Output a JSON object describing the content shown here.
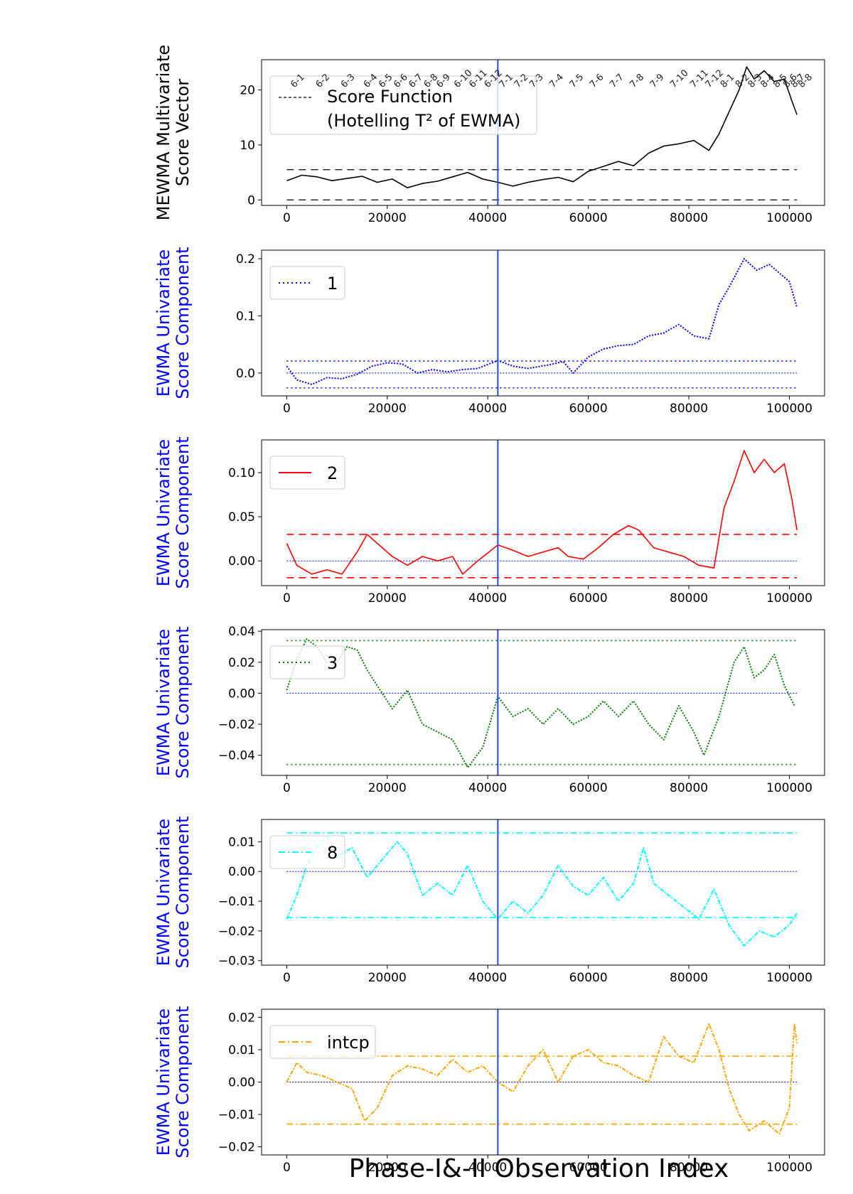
{
  "figure": {
    "xlabel": "Phase-I&-II Observation Index",
    "vline_x": 42000
  },
  "chart_data": [
    {
      "type": "line",
      "ylabel": [
        "MEWMA Multivariate",
        "Score Vector"
      ],
      "ylabel_color": "#000000",
      "ylim": [
        -1,
        25.5
      ],
      "xlim": [
        -5000,
        107000
      ],
      "xticks": [
        0,
        20000,
        40000,
        60000,
        80000,
        100000
      ],
      "yticks": [
        0,
        10,
        20
      ],
      "ytick_labels": [
        "0",
        "10",
        "20"
      ],
      "legend_position": "top-left",
      "series": [
        {
          "name": [
            "Score Function",
            "(Hotelling T² of EWMA)"
          ],
          "color": "#000000",
          "style": "solid",
          "x": [
            0,
            3000,
            6000,
            9000,
            12000,
            15000,
            18000,
            21000,
            24000,
            27000,
            30000,
            33000,
            36000,
            39000,
            42000,
            45000,
            48000,
            51000,
            54000,
            57000,
            60000,
            63000,
            66000,
            69000,
            72000,
            75000,
            78000,
            81000,
            84000,
            86000,
            88000,
            90000,
            91500,
            93000,
            95000,
            97000,
            99000,
            100500,
            101500
          ],
          "y": [
            3.5,
            4.5,
            4.2,
            3.5,
            3.9,
            4.3,
            3.2,
            3.8,
            2.2,
            3.0,
            3.4,
            4.2,
            5.0,
            3.8,
            3.2,
            2.5,
            3.2,
            3.7,
            4.1,
            3.3,
            5.2,
            6.1,
            7.0,
            6.2,
            8.5,
            9.8,
            10.2,
            10.8,
            9.0,
            12.0,
            16.0,
            20.0,
            24.2,
            22.0,
            23.5,
            21.5,
            22.0,
            18.0,
            15.5
          ]
        }
      ],
      "control_limits": [
        {
          "y": 0,
          "color": "#000000",
          "style": "dashed"
        },
        {
          "y": 5.5,
          "color": "#000000",
          "style": "dashed"
        }
      ],
      "annotations": [
        "6-1",
        "6-2",
        "6-3",
        "6-4",
        "6-5",
        "6-6",
        "6-7",
        "6-8",
        "6-9",
        "6-10",
        "6-11",
        "6-12",
        "7-1",
        "7-2",
        "7-3",
        "7-4",
        "7-5",
        "7-6",
        "7-7",
        "7-8",
        "7-9",
        "7-10",
        "7-11",
        "7-12",
        "8-1",
        "8-2",
        "8-3",
        "8-4",
        "8-5",
        "8-6",
        "8-7",
        "8-8"
      ],
      "annotation_x": [
        1500,
        6500,
        11500,
        16000,
        19000,
        22000,
        25000,
        28000,
        30500,
        34000,
        37000,
        40000,
        43000,
        46000,
        49000,
        53000,
        57000,
        61000,
        65000,
        69000,
        73000,
        77000,
        81000,
        84000,
        87000,
        90000,
        92500,
        95000,
        97500,
        99500,
        101000,
        102500
      ]
    },
    {
      "type": "line",
      "ylabel": [
        "EWMA Univariate",
        "Score Component"
      ],
      "ylabel_color": "#0000ff",
      "ylim": [
        -0.04,
        0.215
      ],
      "xlim": [
        -5000,
        107000
      ],
      "xticks": [
        0,
        20000,
        40000,
        60000,
        80000,
        100000
      ],
      "yticks": [
        0.0,
        0.1,
        0.2
      ],
      "ytick_labels": [
        "0.0",
        "0.1",
        "0.2"
      ],
      "legend_position": "top-left",
      "series": [
        {
          "name": "1",
          "color": "#0000ff",
          "style": "dotted",
          "x": [
            0,
            2000,
            5000,
            8000,
            11000,
            14000,
            17000,
            20000,
            23000,
            26000,
            29000,
            32000,
            35000,
            38000,
            42000,
            45000,
            48000,
            52000,
            55000,
            57000,
            60000,
            63000,
            66000,
            69000,
            72000,
            75000,
            78000,
            81000,
            84000,
            86000,
            88000,
            91000,
            93500,
            96000,
            98000,
            100000,
            101500
          ],
          "y": [
            0.012,
            -0.012,
            -0.02,
            -0.008,
            -0.01,
            -0.002,
            0.012,
            0.018,
            0.016,
            0.0,
            0.006,
            0.002,
            0.006,
            0.008,
            0.022,
            0.012,
            0.008,
            0.014,
            0.02,
            0.0,
            0.028,
            0.042,
            0.048,
            0.05,
            0.065,
            0.07,
            0.085,
            0.065,
            0.06,
            0.12,
            0.15,
            0.2,
            0.18,
            0.19,
            0.175,
            0.16,
            0.115
          ]
        }
      ],
      "control_limits": [
        {
          "y": 0,
          "color": "#0000ff",
          "style": "dotted_thin"
        },
        {
          "y": 0.021,
          "color": "#0000ff",
          "style": "dotted"
        },
        {
          "y": -0.026,
          "color": "#0000ff",
          "style": "dotted"
        }
      ]
    },
    {
      "type": "line",
      "ylabel": [
        "EWMA Univariate",
        "Score Component"
      ],
      "ylabel_color": "#0000ff",
      "ylim": [
        -0.028,
        0.137
      ],
      "xlim": [
        -5000,
        107000
      ],
      "xticks": [
        0,
        20000,
        40000,
        60000,
        80000,
        100000
      ],
      "yticks": [
        0.0,
        0.05,
        0.1
      ],
      "ytick_labels": [
        "0.00",
        "0.05",
        "0.10"
      ],
      "legend_position": "top-left",
      "series": [
        {
          "name": "2",
          "color": "#ff0000",
          "style": "solid",
          "x": [
            0,
            2000,
            5000,
            8000,
            11000,
            14000,
            16000,
            18000,
            21000,
            24000,
            27000,
            30000,
            33000,
            35000,
            38000,
            42000,
            45000,
            48000,
            51000,
            54000,
            56000,
            59000,
            62000,
            65000,
            68000,
            70000,
            73000,
            76000,
            79000,
            82000,
            85000,
            87000,
            89000,
            91000,
            93000,
            95000,
            97000,
            99000,
            100500,
            101500
          ],
          "y": [
            0.02,
            -0.005,
            -0.015,
            -0.01,
            -0.015,
            0.01,
            0.03,
            0.02,
            0.005,
            -0.005,
            0.005,
            0.0,
            0.005,
            -0.015,
            0.0,
            0.018,
            0.012,
            0.005,
            0.01,
            0.015,
            0.005,
            0.002,
            0.015,
            0.03,
            0.04,
            0.035,
            0.015,
            0.01,
            0.005,
            -0.005,
            -0.008,
            0.06,
            0.09,
            0.125,
            0.1,
            0.115,
            0.1,
            0.11,
            0.07,
            0.035
          ]
        }
      ],
      "control_limits": [
        {
          "y": 0,
          "color": "#0000ff",
          "style": "dotted_thin"
        },
        {
          "y": 0.03,
          "color": "#ff0000",
          "style": "dashed"
        },
        {
          "y": -0.019,
          "color": "#ff0000",
          "style": "dashed"
        }
      ]
    },
    {
      "type": "line",
      "ylabel": [
        "EWMA Univariate",
        "Score Component"
      ],
      "ylabel_color": "#0000ff",
      "ylim": [
        -0.053,
        0.041
      ],
      "xlim": [
        -5000,
        107000
      ],
      "xticks": [
        0,
        20000,
        40000,
        60000,
        80000,
        100000
      ],
      "yticks": [
        -0.04,
        -0.02,
        0.0,
        0.02,
        0.04
      ],
      "ytick_labels": [
        "−0.04",
        "−0.02",
        "0.00",
        "0.02",
        "0.04"
      ],
      "legend_position": "top-left",
      "series": [
        {
          "name": "3",
          "color": "#008000",
          "style": "dotted",
          "x": [
            0,
            2000,
            4000,
            6000,
            8000,
            10000,
            12000,
            14000,
            16000,
            18000,
            21000,
            24000,
            27000,
            30000,
            33000,
            36000,
            39000,
            42000,
            45000,
            48000,
            51000,
            54000,
            57000,
            60000,
            63000,
            66000,
            69000,
            72000,
            75000,
            78000,
            81000,
            83000,
            86000,
            89000,
            91000,
            93000,
            95000,
            97000,
            99000,
            101000
          ],
          "y": [
            0.002,
            0.022,
            0.035,
            0.03,
            0.02,
            0.02,
            0.03,
            0.028,
            0.015,
            0.005,
            -0.01,
            0.002,
            -0.02,
            -0.025,
            -0.03,
            -0.048,
            -0.035,
            -0.002,
            -0.015,
            -0.01,
            -0.02,
            -0.01,
            -0.02,
            -0.015,
            -0.005,
            -0.015,
            -0.005,
            -0.02,
            -0.03,
            -0.008,
            -0.025,
            -0.04,
            -0.015,
            0.02,
            0.03,
            0.01,
            0.015,
            0.025,
            0.005,
            -0.008
          ]
        }
      ],
      "control_limits": [
        {
          "y": 0,
          "color": "#0000ff",
          "style": "dotted_thin"
        },
        {
          "y": 0.034,
          "color": "#008000",
          "style": "dotted"
        },
        {
          "y": -0.046,
          "color": "#008000",
          "style": "dotted"
        }
      ]
    },
    {
      "type": "line",
      "ylabel": [
        "EWMA Univariate",
        "Score Component"
      ],
      "ylabel_color": "#0000ff",
      "ylim": [
        -0.0315,
        0.0175
      ],
      "xlim": [
        -5000,
        107000
      ],
      "xticks": [
        0,
        20000,
        40000,
        60000,
        80000,
        100000
      ],
      "yticks": [
        -0.03,
        -0.02,
        -0.01,
        0.0,
        0.01
      ],
      "ytick_labels": [
        "−0.03",
        "−0.02",
        "−0.01",
        "0.00",
        "0.01"
      ],
      "legend_position": "top-left",
      "series": [
        {
          "name": "8",
          "color": "#00ffff",
          "style": "dashdot",
          "x": [
            0,
            2000,
            4000,
            6000,
            8000,
            10000,
            13000,
            16000,
            19000,
            22000,
            24000,
            27000,
            30000,
            33000,
            36000,
            39000,
            42000,
            45000,
            48000,
            51000,
            54000,
            57000,
            60000,
            63000,
            66000,
            69000,
            71000,
            73000,
            76000,
            79000,
            82000,
            85000,
            88000,
            91000,
            94000,
            97000,
            100000,
            101500
          ],
          "y": [
            -0.016,
            -0.008,
            0.002,
            0.008,
            0.012,
            0.005,
            0.008,
            -0.002,
            0.004,
            0.01,
            0.006,
            -0.008,
            -0.004,
            -0.008,
            0.002,
            -0.01,
            -0.016,
            -0.01,
            -0.014,
            -0.008,
            0.002,
            -0.005,
            -0.008,
            -0.002,
            -0.01,
            -0.004,
            0.008,
            -0.004,
            -0.008,
            -0.012,
            -0.016,
            -0.006,
            -0.018,
            -0.025,
            -0.02,
            -0.022,
            -0.018,
            -0.014
          ]
        }
      ],
      "control_limits": [
        {
          "y": 0,
          "color": "#0000ff",
          "style": "dotted_thin"
        },
        {
          "y": 0.013,
          "color": "#00ffff",
          "style": "dashdot"
        },
        {
          "y": -0.0155,
          "color": "#00ffff",
          "style": "dashdot"
        }
      ]
    },
    {
      "type": "line",
      "ylabel": [
        "EWMA Univariate",
        "Score Component"
      ],
      "ylabel_color": "#0000ff",
      "ylim": [
        -0.0225,
        0.0225
      ],
      "xlim": [
        -5000,
        107000
      ],
      "xticks": [
        0,
        20000,
        40000,
        60000,
        80000,
        100000
      ],
      "yticks": [
        -0.02,
        -0.01,
        0.0,
        0.01,
        0.02
      ],
      "ytick_labels": [
        "−0.02",
        "−0.01",
        "0.00",
        "0.01",
        "0.02"
      ],
      "legend_position": "top-left",
      "series": [
        {
          "name": "intcp",
          "color": "#ffa500",
          "style": "dashdot",
          "x": [
            0,
            2000,
            4000,
            7000,
            10000,
            13000,
            15500,
            18000,
            21000,
            24000,
            27000,
            30000,
            33000,
            36000,
            39000,
            42000,
            45000,
            48000,
            51000,
            54000,
            57000,
            60000,
            63000,
            66000,
            69000,
            72000,
            75000,
            78000,
            81000,
            84000,
            86000,
            88000,
            90000,
            92000,
            95000,
            98000,
            100000,
            101000,
            101500
          ],
          "y": [
            0.0,
            0.006,
            0.003,
            0.002,
            0.0,
            -0.002,
            -0.012,
            -0.008,
            0.002,
            0.005,
            0.004,
            0.002,
            0.007,
            0.003,
            0.005,
            0.0,
            -0.003,
            0.005,
            0.01,
            0.0,
            0.008,
            0.01,
            0.006,
            0.005,
            0.002,
            0.0,
            0.014,
            0.008,
            0.006,
            0.018,
            0.01,
            -0.002,
            -0.01,
            -0.015,
            -0.012,
            -0.016,
            -0.008,
            0.018,
            0.012
          ]
        }
      ],
      "control_limits": [
        {
          "y": 0,
          "color": "#0000ff",
          "style": "dotted_thin"
        },
        {
          "y": 0.008,
          "color": "#ffa500",
          "style": "dashdot"
        },
        {
          "y": -0.013,
          "color": "#ffa500",
          "style": "dashdot"
        }
      ]
    }
  ]
}
